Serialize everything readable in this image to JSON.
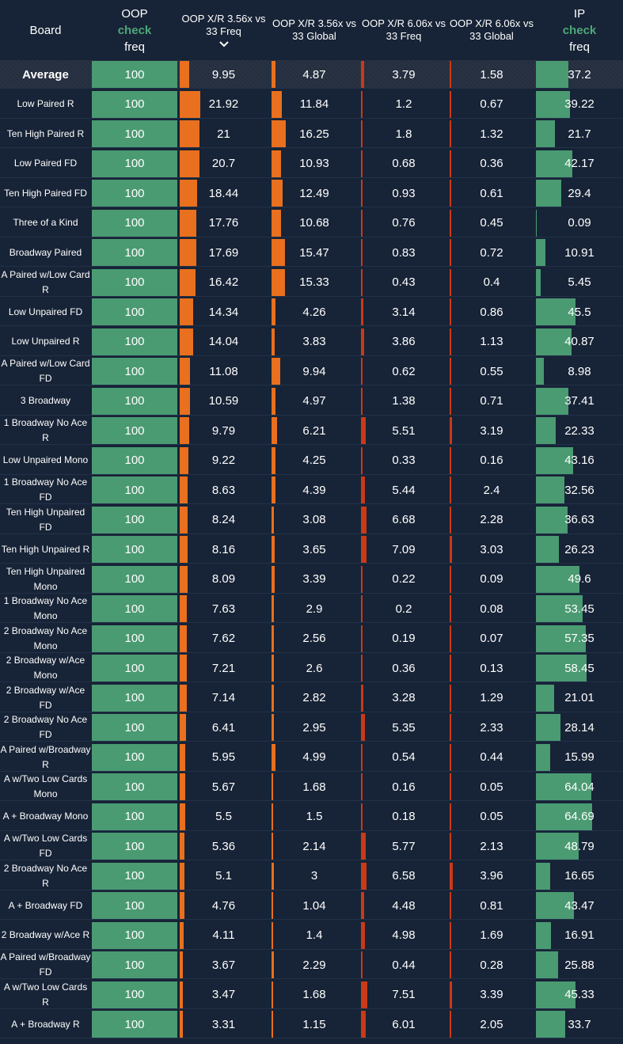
{
  "header": {
    "board": "Board",
    "oop_line1": "OOP",
    "oop_check": "check",
    "oop_freq": "freq",
    "col1": "OOP X/R 3.56x vs 33 Freq",
    "col2": "OOP X/R 3.56x vs 33 Global",
    "col3": "OOP X/R 6.06x vs 33 Freq",
    "col4": "OOP X/R 6.06x vs 33 Global",
    "ip_line1": "IP",
    "ip_check": "check",
    "ip_freq": "freq"
  },
  "colors": {
    "background": "#172336",
    "green": "#4a9a72",
    "orange": "#e8701f",
    "red": "#c93a16",
    "check_text": "#4ea779"
  },
  "rows": [
    {
      "board": "Average",
      "oop": "100",
      "c1": "9.95",
      "c2": "4.87",
      "c3": "3.79",
      "c4": "1.58",
      "ip": "37.2"
    },
    {
      "board": "Low Paired R",
      "oop": "100",
      "c1": "21.92",
      "c2": "11.84",
      "c3": "1.2",
      "c4": "0.67",
      "ip": "39.22"
    },
    {
      "board": "Ten High Paired R",
      "oop": "100",
      "c1": "21",
      "c2": "16.25",
      "c3": "1.8",
      "c4": "1.32",
      "ip": "21.7"
    },
    {
      "board": "Low Paired FD",
      "oop": "100",
      "c1": "20.7",
      "c2": "10.93",
      "c3": "0.68",
      "c4": "0.36",
      "ip": "42.17"
    },
    {
      "board": "Ten High Paired FD",
      "oop": "100",
      "c1": "18.44",
      "c2": "12.49",
      "c3": "0.93",
      "c4": "0.61",
      "ip": "29.4"
    },
    {
      "board": "Three of a Kind",
      "oop": "100",
      "c1": "17.76",
      "c2": "10.68",
      "c3": "0.76",
      "c4": "0.45",
      "ip": "0.09"
    },
    {
      "board": "Broadway Paired",
      "oop": "100",
      "c1": "17.69",
      "c2": "15.47",
      "c3": "0.83",
      "c4": "0.72",
      "ip": "10.91"
    },
    {
      "board": "A Paired w/Low Card R",
      "oop": "100",
      "c1": "16.42",
      "c2": "15.33",
      "c3": "0.43",
      "c4": "0.4",
      "ip": "5.45"
    },
    {
      "board": "Low Unpaired FD",
      "oop": "100",
      "c1": "14.34",
      "c2": "4.26",
      "c3": "3.14",
      "c4": "0.86",
      "ip": "45.5"
    },
    {
      "board": "Low Unpaired R",
      "oop": "100",
      "c1": "14.04",
      "c2": "3.83",
      "c3": "3.86",
      "c4": "1.13",
      "ip": "40.87"
    },
    {
      "board": "A Paired w/Low Card FD",
      "oop": "100",
      "c1": "11.08",
      "c2": "9.94",
      "c3": "0.62",
      "c4": "0.55",
      "ip": "8.98"
    },
    {
      "board": "3 Broadway",
      "oop": "100",
      "c1": "10.59",
      "c2": "4.97",
      "c3": "1.38",
      "c4": "0.71",
      "ip": "37.41"
    },
    {
      "board": "1 Broadway No Ace R",
      "oop": "100",
      "c1": "9.79",
      "c2": "6.21",
      "c3": "5.51",
      "c4": "3.19",
      "ip": "22.33"
    },
    {
      "board": "Low Unpaired Mono",
      "oop": "100",
      "c1": "9.22",
      "c2": "4.25",
      "c3": "0.33",
      "c4": "0.16",
      "ip": "43.16"
    },
    {
      "board": "1 Broadway No Ace FD",
      "oop": "100",
      "c1": "8.63",
      "c2": "4.39",
      "c3": "5.44",
      "c4": "2.4",
      "ip": "32.56"
    },
    {
      "board": "Ten High Unpaired FD",
      "oop": "100",
      "c1": "8.24",
      "c2": "3.08",
      "c3": "6.68",
      "c4": "2.28",
      "ip": "36.63"
    },
    {
      "board": "Ten High Unpaired R",
      "oop": "100",
      "c1": "8.16",
      "c2": "3.65",
      "c3": "7.09",
      "c4": "3.03",
      "ip": "26.23"
    },
    {
      "board": "Ten High Unpaired Mono",
      "oop": "100",
      "c1": "8.09",
      "c2": "3.39",
      "c3": "0.22",
      "c4": "0.09",
      "ip": "49.6"
    },
    {
      "board": "1 Broadway No Ace Mono",
      "oop": "100",
      "c1": "7.63",
      "c2": "2.9",
      "c3": "0.2",
      "c4": "0.08",
      "ip": "53.45"
    },
    {
      "board": "2 Broadway No Ace Mono",
      "oop": "100",
      "c1": "7.62",
      "c2": "2.56",
      "c3": "0.19",
      "c4": "0.07",
      "ip": "57.35"
    },
    {
      "board": "2 Broadway w/Ace Mono",
      "oop": "100",
      "c1": "7.21",
      "c2": "2.6",
      "c3": "0.36",
      "c4": "0.13",
      "ip": "58.45"
    },
    {
      "board": "2 Broadway w/Ace FD",
      "oop": "100",
      "c1": "7.14",
      "c2": "2.82",
      "c3": "3.28",
      "c4": "1.29",
      "ip": "21.01"
    },
    {
      "board": "2 Broadway No Ace FD",
      "oop": "100",
      "c1": "6.41",
      "c2": "2.95",
      "c3": "5.35",
      "c4": "2.33",
      "ip": "28.14"
    },
    {
      "board": "A Paired w/Broadway R",
      "oop": "100",
      "c1": "5.95",
      "c2": "4.99",
      "c3": "0.54",
      "c4": "0.44",
      "ip": "15.99"
    },
    {
      "board": "A w/Two Low Cards Mono",
      "oop": "100",
      "c1": "5.67",
      "c2": "1.68",
      "c3": "0.16",
      "c4": "0.05",
      "ip": "64.04"
    },
    {
      "board": "A + Broadway Mono",
      "oop": "100",
      "c1": "5.5",
      "c2": "1.5",
      "c3": "0.18",
      "c4": "0.05",
      "ip": "64.69"
    },
    {
      "board": "A w/Two Low Cards FD",
      "oop": "100",
      "c1": "5.36",
      "c2": "2.14",
      "c3": "5.77",
      "c4": "2.13",
      "ip": "48.79"
    },
    {
      "board": "2 Broadway No Ace R",
      "oop": "100",
      "c1": "5.1",
      "c2": "3",
      "c3": "6.58",
      "c4": "3.96",
      "ip": "16.65"
    },
    {
      "board": "A + Broadway FD",
      "oop": "100",
      "c1": "4.76",
      "c2": "1.04",
      "c3": "4.48",
      "c4": "0.81",
      "ip": "43.47"
    },
    {
      "board": "2 Broadway w/Ace R",
      "oop": "100",
      "c1": "4.11",
      "c2": "1.4",
      "c3": "4.98",
      "c4": "1.69",
      "ip": "16.91"
    },
    {
      "board": "A Paired w/Broadway FD",
      "oop": "100",
      "c1": "3.67",
      "c2": "2.29",
      "c3": "0.44",
      "c4": "0.28",
      "ip": "25.88"
    },
    {
      "board": "A w/Two Low Cards R",
      "oop": "100",
      "c1": "3.47",
      "c2": "1.68",
      "c3": "7.51",
      "c4": "3.39",
      "ip": "45.33"
    },
    {
      "board": "A + Broadway R",
      "oop": "100",
      "c1": "3.31",
      "c2": "1.15",
      "c3": "6.01",
      "c4": "2.05",
      "ip": "33.7"
    }
  ]
}
